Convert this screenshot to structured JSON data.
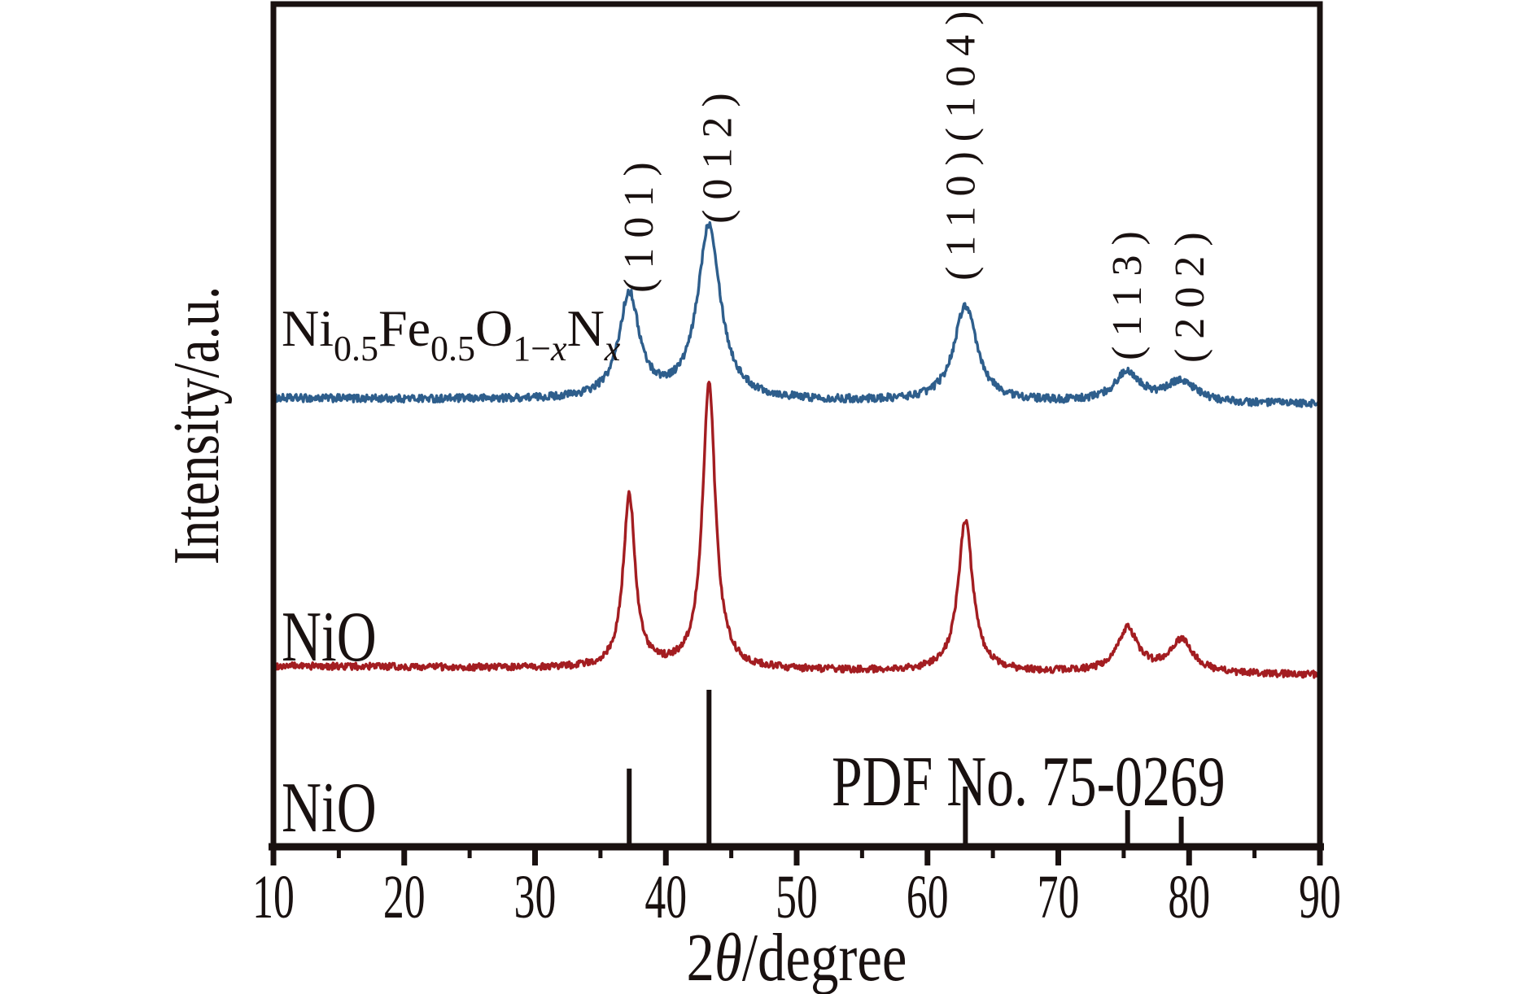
{
  "figure": {
    "background": "#ffffff",
    "axis_color": "#191110",
    "text_color": "#191110"
  },
  "chart_data": {
    "type": "line",
    "title": "",
    "xlabel": "2θ/degree",
    "xlabel_parts": [
      "2",
      "θ",
      "/degree"
    ],
    "ylabel": "Intensity/a.u.",
    "x_axis": {
      "min": 10,
      "max": 90,
      "major_ticks": [
        10,
        20,
        30,
        40,
        50,
        60,
        70,
        80,
        90
      ],
      "major_tick_labels": [
        "10",
        "20",
        "30",
        "40",
        "50",
        "60",
        "70",
        "80",
        "90"
      ],
      "minor_ticks": [
        15,
        25,
        35,
        45,
        55,
        65,
        75,
        85
      ]
    },
    "y_axis": {
      "label": "Intensity/a.u.",
      "units": "a.u.",
      "tick_labels": []
    },
    "series": [
      {
        "name": "Ni0.5Fe0.5O1-xNx",
        "label_segments": [
          {
            "t": "Ni"
          },
          {
            "t": "0.5",
            "sub": true
          },
          {
            "t": "Fe"
          },
          {
            "t": "0.5",
            "sub": true
          },
          {
            "t": "O"
          },
          {
            "t": "1−",
            "sub": true
          },
          {
            "t": "x",
            "sub": true,
            "italic": true
          },
          {
            "t": "N"
          },
          {
            "t": "x",
            "sub": true,
            "italic": true
          }
        ],
        "color": "#2e5e8c",
        "baseline_au_start": 157.5,
        "baseline_au_end": 155.4,
        "noise_au": 1.35,
        "seed": 1234,
        "peaks": [
          {
            "two_theta": 37.2,
            "intensity_au": 36.6,
            "hwhm_deg": 0.93
          },
          {
            "two_theta": 43.3,
            "intensity_au": 61.4,
            "hwhm_deg": 1.05
          },
          {
            "two_theta": 62.9,
            "intensity_au": 33.7,
            "hwhm_deg": 1.05
          },
          {
            "two_theta": 75.3,
            "intensity_au": 10.5,
            "hwhm_deg": 1.2
          },
          {
            "two_theta": 79.4,
            "intensity_au": 7.5,
            "hwhm_deg": 1.3
          }
        ]
      },
      {
        "name": "NiO",
        "color": "#a31d21",
        "baseline_au_start": 63.5,
        "baseline_au_end": 60.3,
        "noise_au": 1.2,
        "seed": 99,
        "peaks": [
          {
            "two_theta": 37.2,
            "intensity_au": 60.9,
            "hwhm_deg": 0.55
          },
          {
            "two_theta": 43.3,
            "intensity_au": 100.0,
            "hwhm_deg": 0.6
          },
          {
            "two_theta": 62.9,
            "intensity_au": 53.1,
            "hwhm_deg": 0.68
          },
          {
            "two_theta": 75.3,
            "intensity_au": 15.4,
            "hwhm_deg": 0.95
          },
          {
            "two_theta": 79.4,
            "intensity_au": 11.4,
            "hwhm_deg": 1.1
          }
        ]
      }
    ],
    "reference": {
      "name": "NiO",
      "label": "PDF No. 75-0269",
      "color": "#191110",
      "sticks": [
        {
          "two_theta": 37.2,
          "intensity_au": 26.6
        },
        {
          "two_theta": 43.3,
          "intensity_au": 54.3
        },
        {
          "two_theta": 62.9,
          "intensity_au": 20.3
        },
        {
          "two_theta": 75.3,
          "intensity_au": 12.0
        },
        {
          "two_theta": 79.4,
          "intensity_au": 9.7
        }
      ]
    },
    "peak_annotations": [
      {
        "text": "(101)",
        "x_deg": 39.0,
        "bottom_au": 194.6
      },
      {
        "text": "(012)",
        "x_deg": 45.0,
        "bottom_au": 218.9
      },
      {
        "text": "(110)(104)",
        "x_deg": 63.6,
        "bottom_au": 198.9
      },
      {
        "text": "(113)",
        "x_deg": 76.3,
        "bottom_au": 170.9
      },
      {
        "text": "(202)",
        "x_deg": 81.1,
        "bottom_au": 170.0
      }
    ]
  }
}
